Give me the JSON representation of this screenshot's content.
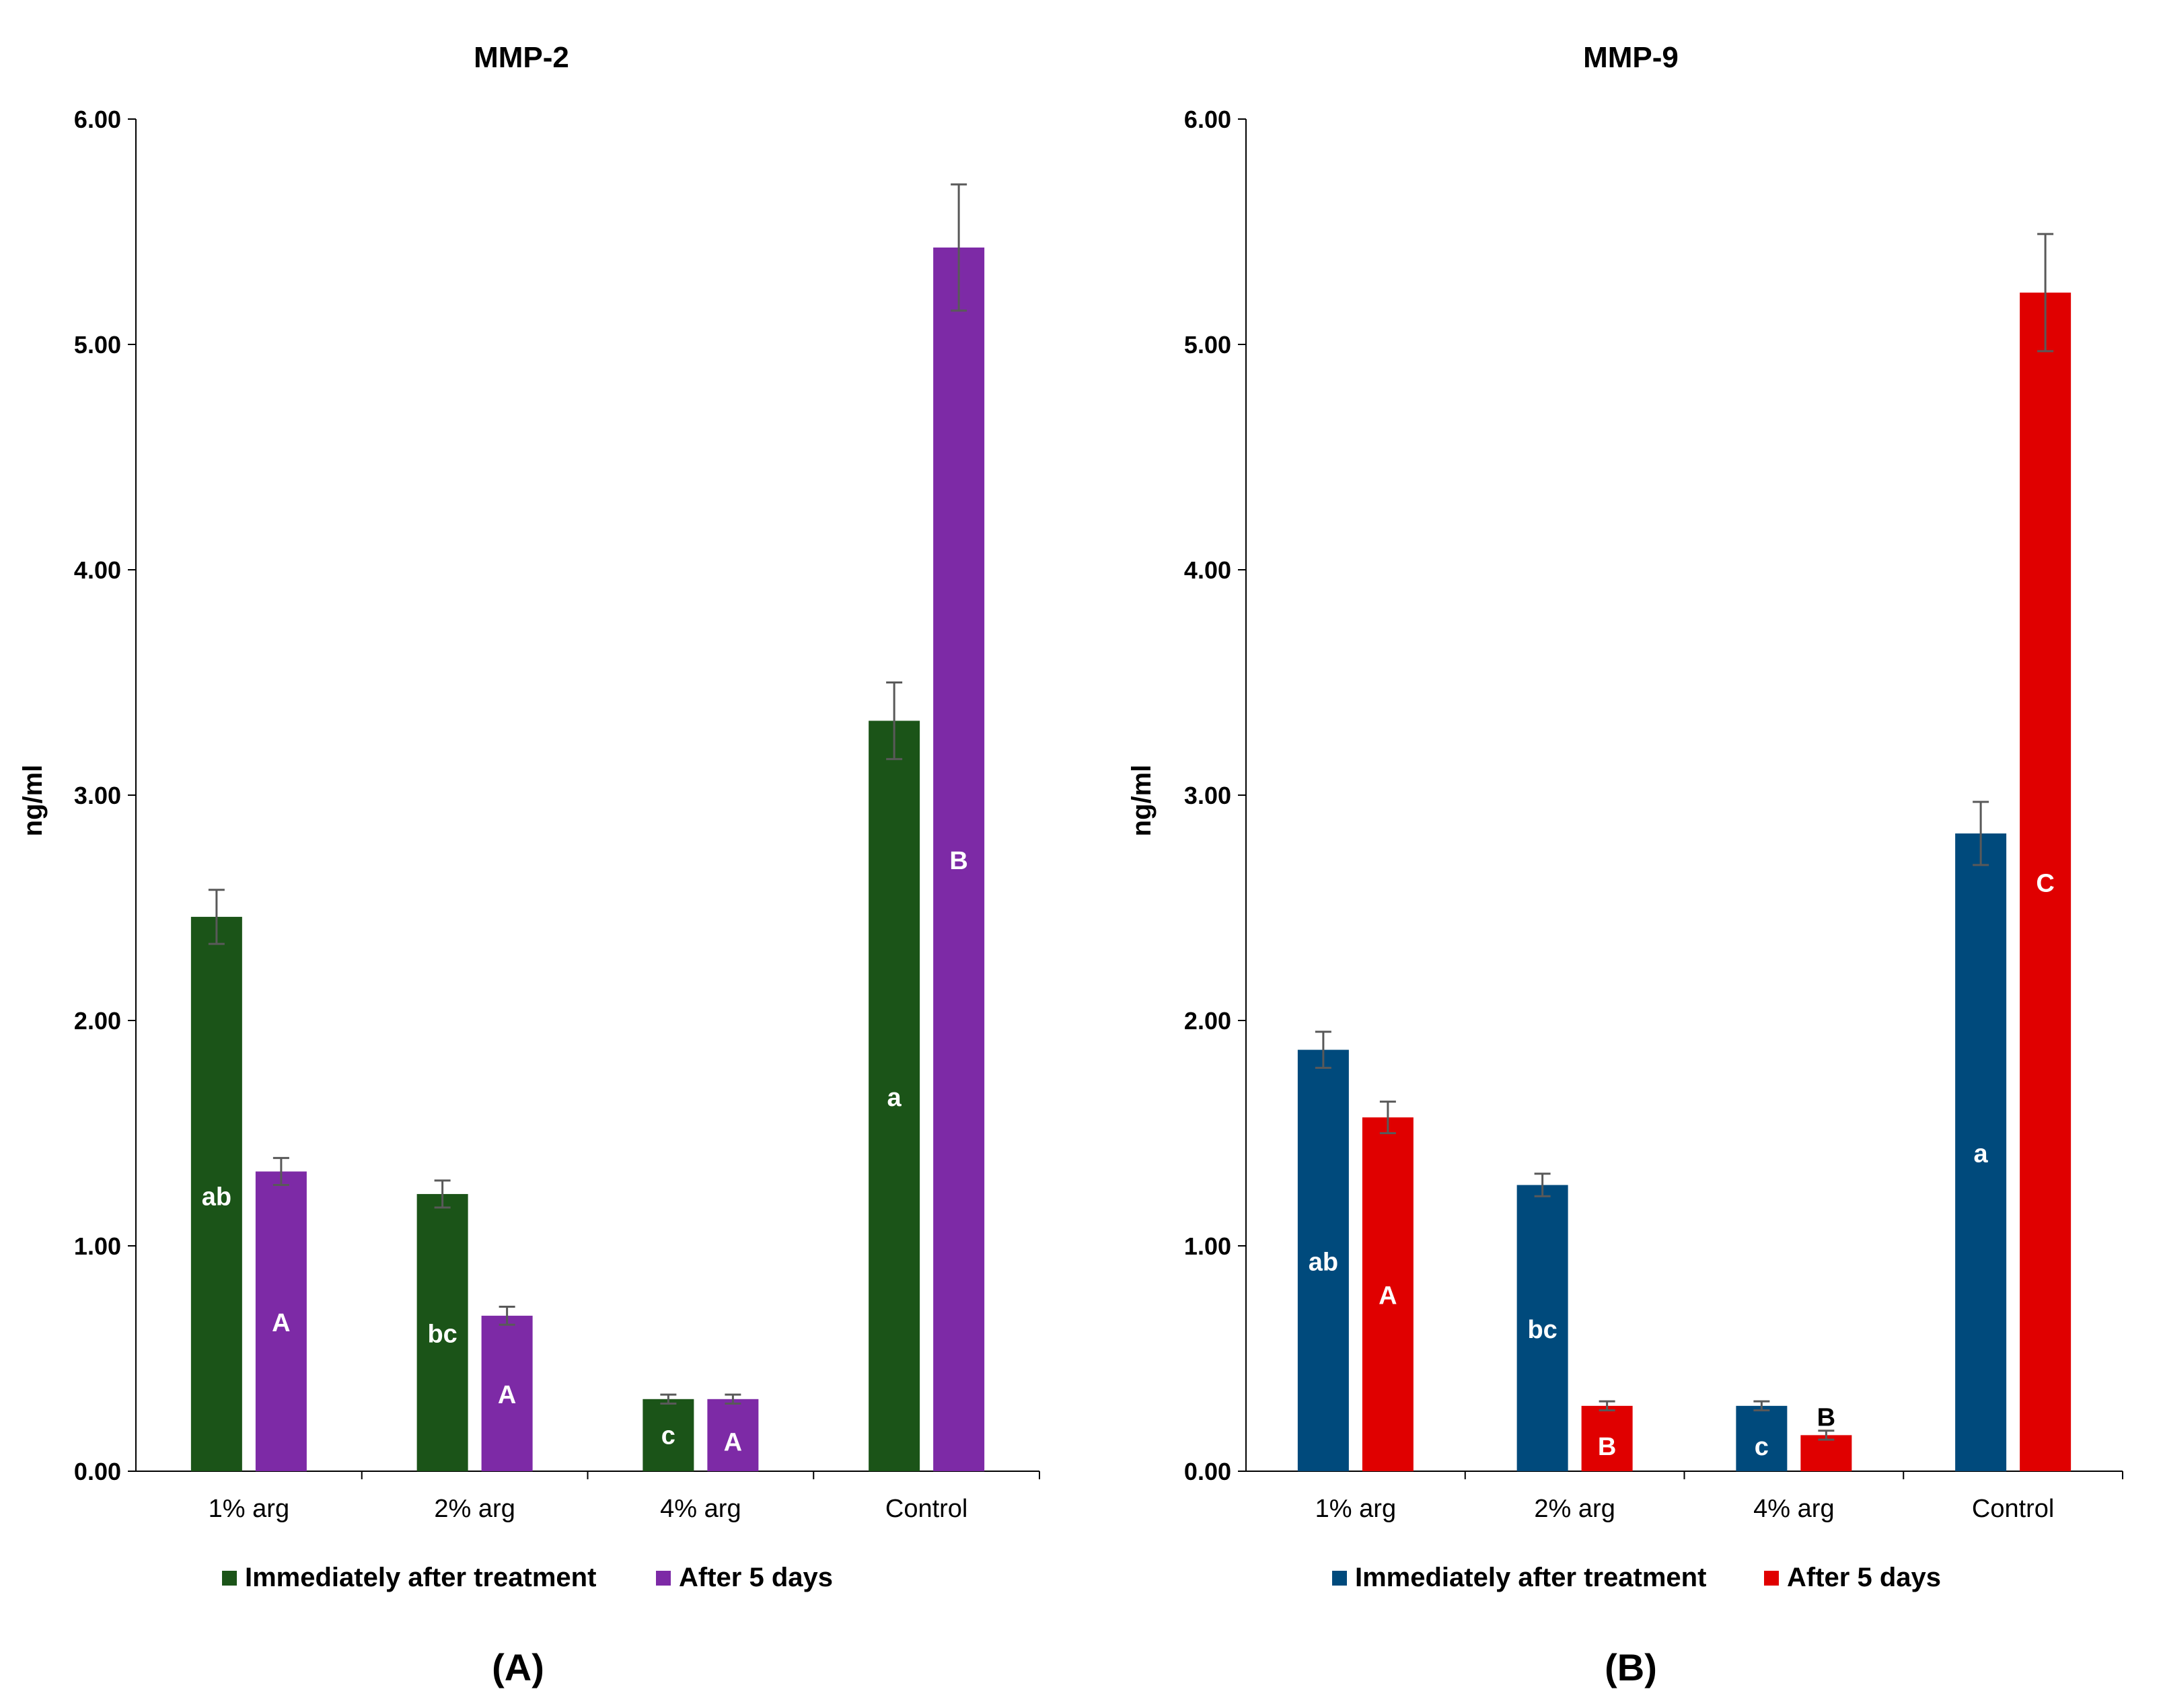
{
  "chart_data": [
    {
      "type": "bar",
      "title": "MMP-2",
      "panel_label": "(A)",
      "ylabel": "ng/ml",
      "xlabel": "",
      "ylim": [
        0,
        6
      ],
      "yticks": [
        "0.00",
        "1.00",
        "2.00",
        "3.00",
        "4.00",
        "5.00",
        "6.00"
      ],
      "grid": false,
      "legend_position": "bottom",
      "categories": [
        "1% arg",
        "2% arg",
        "4% arg",
        "Control"
      ],
      "series": [
        {
          "name": "Immediately after treatment",
          "color": "#1b5418",
          "values": [
            2.46,
            1.23,
            0.32,
            3.33
          ],
          "errors": [
            0.12,
            0.06,
            0.02,
            0.17
          ],
          "letters": [
            "ab",
            "bc",
            "c",
            "a"
          ],
          "letter_at": [
            1.22,
            0.61,
            0.16,
            1.66
          ]
        },
        {
          "name": "After 5 days",
          "color": "#7d2aa6",
          "values": [
            1.33,
            0.69,
            0.32,
            5.43
          ],
          "errors": [
            0.06,
            0.04,
            0.02,
            0.28
          ],
          "letters": [
            "A",
            "A",
            "A",
            "B"
          ],
          "letter_at": [
            0.66,
            0.34,
            0.13,
            2.71
          ]
        }
      ]
    },
    {
      "type": "bar",
      "title": "MMP-9",
      "panel_label": "(B)",
      "ylabel": "ng/ml",
      "xlabel": "",
      "ylim": [
        0,
        6
      ],
      "yticks": [
        "0.00",
        "1.00",
        "2.00",
        "3.00",
        "4.00",
        "5.00",
        "6.00"
      ],
      "grid": false,
      "legend_position": "bottom",
      "categories": [
        "1% arg",
        "2% arg",
        "4% arg",
        "Control"
      ],
      "series": [
        {
          "name": "Immediately after treatment",
          "color": "#004a7c",
          "values": [
            1.87,
            1.27,
            0.29,
            2.83
          ],
          "errors": [
            0.08,
            0.05,
            0.02,
            0.14
          ],
          "letters": [
            "ab",
            "bc",
            "c",
            "a"
          ],
          "letter_at": [
            0.93,
            0.63,
            0.11,
            1.41
          ]
        },
        {
          "name": "After 5 days",
          "color": "#e00000",
          "values": [
            1.57,
            0.29,
            0.16,
            5.23
          ],
          "errors": [
            0.07,
            0.02,
            0.02,
            0.26
          ],
          "letters": [
            "A",
            "B",
            "B",
            "C"
          ],
          "letter_at": [
            0.78,
            0.11,
            0.24,
            2.61
          ]
        }
      ]
    }
  ]
}
